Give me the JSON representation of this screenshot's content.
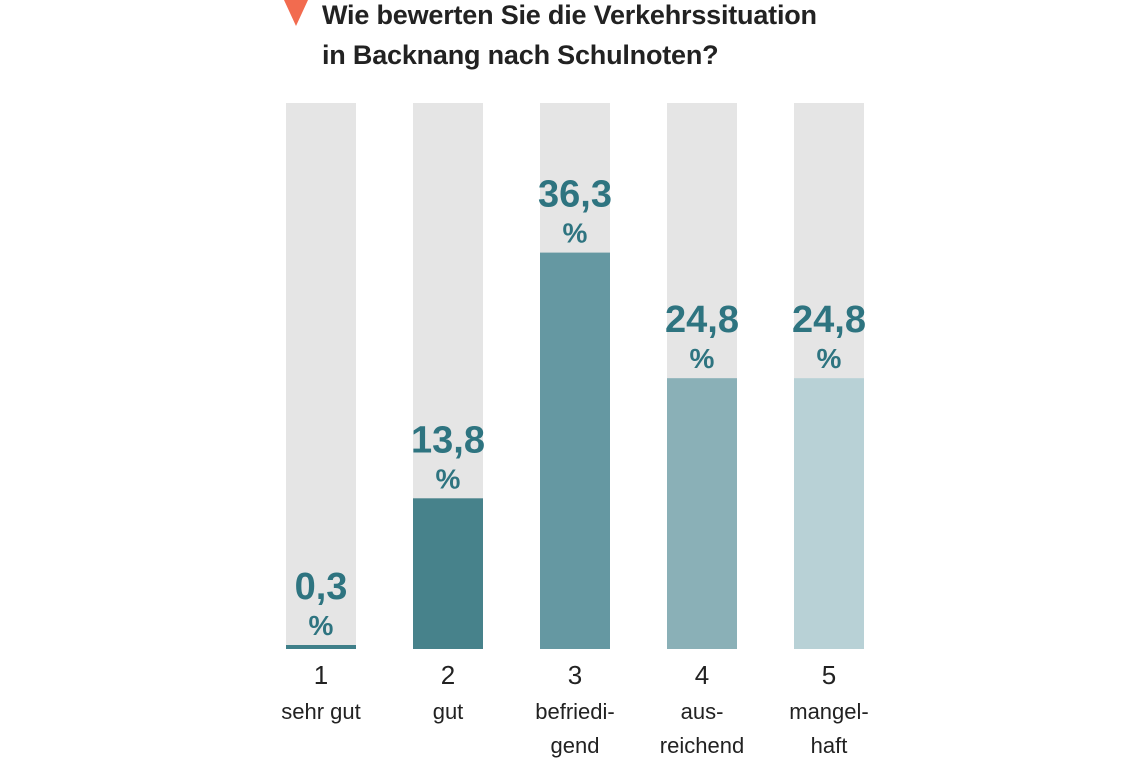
{
  "title_lines": [
    "Wie bewerten Sie die Verkehrssituation",
    "in Backnang nach Schulnoten?"
  ],
  "colors": {
    "marker": "#f26b4f",
    "track": "#e5e5e5",
    "label": "#2e7480",
    "axis_text": "#222222",
    "bars": [
      "#3f7f89",
      "#47828b",
      "#6598a2",
      "#8ab0b7",
      "#b8d1d6"
    ]
  },
  "chart_data": {
    "type": "bar",
    "title": "Wie bewerten Sie die Verkehrssituation in Backnang nach Schulnoten?",
    "unit": "%",
    "ylim": [
      0,
      50
    ],
    "grid": false,
    "categories": [
      "1",
      "2",
      "3",
      "4",
      "5"
    ],
    "category_sublabels": [
      [
        "sehr gut"
      ],
      [
        "gut"
      ],
      [
        "befriedi-",
        "gend"
      ],
      [
        "aus-",
        "reichend"
      ],
      [
        "mangel-",
        "haft"
      ]
    ],
    "values": [
      0.3,
      13.8,
      36.3,
      24.8,
      24.8
    ],
    "value_labels": [
      "0,3",
      "13,8",
      "36,3",
      "24,8",
      "24,8"
    ],
    "xlabel": "",
    "ylabel": ""
  }
}
